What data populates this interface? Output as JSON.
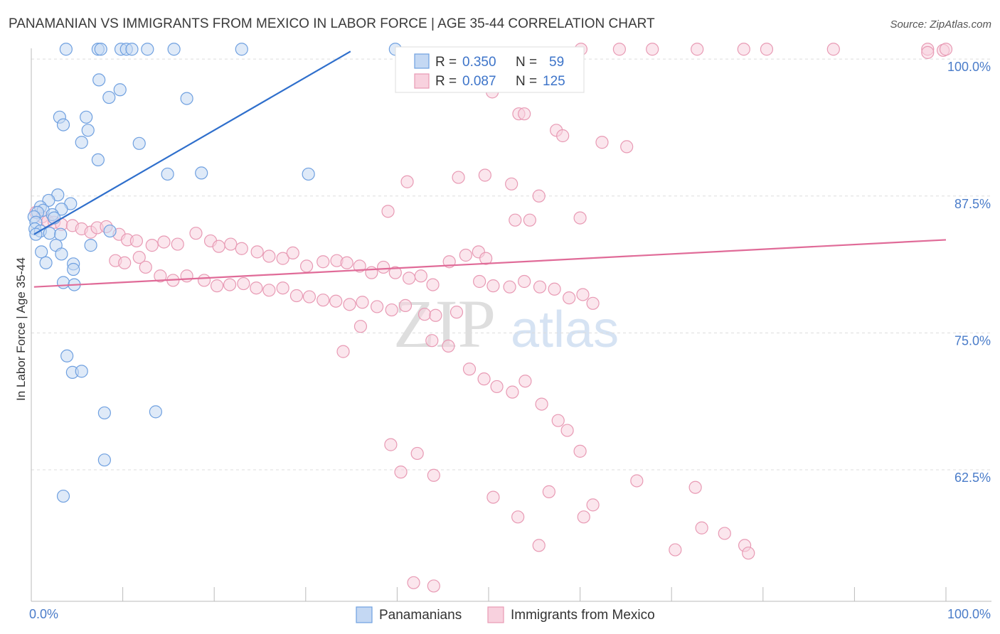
{
  "title": "PANAMANIAN VS IMMIGRANTS FROM MEXICO IN LABOR FORCE | AGE 35-44 CORRELATION CHART",
  "source": "Source: ZipAtlas.com",
  "watermark": {
    "zip": "ZIP",
    "atlas": "atlas"
  },
  "colors": {
    "blue": "#6fa0e0",
    "blue_fill": "#c4d8f3",
    "blue_line": "#2f6fcc",
    "pink": "#e89ab4",
    "pink_fill": "#f8d1de",
    "pink_line": "#e06b98",
    "tick_text": "#4a7cc9",
    "grid": "#dddddd"
  },
  "stats": [
    {
      "r_label": "R =",
      "r_value": "0.350",
      "n_label": "N =",
      "n_value": "59"
    },
    {
      "r_label": "R =",
      "r_value": "0.087",
      "n_label": "N =",
      "n_value": "125"
    }
  ],
  "chart_data": {
    "type": "scatter",
    "title": "PANAMANIAN VS IMMIGRANTS FROM MEXICO IN LABOR FORCE | AGE 35-44 CORRELATION CHART",
    "xlabel": "",
    "ylabel": "In Labor Force | Age 35-44",
    "xlim": [
      0,
      100
    ],
    "ylim": [
      50.5,
      101.5
    ],
    "x_tick_labels": [
      {
        "value": 0,
        "label": "0.0%"
      },
      {
        "value": 100,
        "label": "100.0%"
      }
    ],
    "y_ticks": [
      {
        "value": 100,
        "label": "100.0%"
      },
      {
        "value": 87.5,
        "label": "87.5%"
      },
      {
        "value": 75,
        "label": "75.0%"
      },
      {
        "value": 62.5,
        "label": "62.5%"
      }
    ],
    "grid": true,
    "legend_position": "bottom-center",
    "series": [
      {
        "name": "Panamanians",
        "color": "blue",
        "trend": {
          "x": [
            0.3,
            34.9
          ],
          "y": [
            84.0,
            100.7
          ]
        },
        "points": [
          [
            3.8,
            100.9
          ],
          [
            7.3,
            100.9
          ],
          [
            7.6,
            100.9
          ],
          [
            9.8,
            100.9
          ],
          [
            10.4,
            100.9
          ],
          [
            11.0,
            100.9
          ],
          [
            12.7,
            100.9
          ],
          [
            15.6,
            100.9
          ],
          [
            23.0,
            100.9
          ],
          [
            39.8,
            100.9
          ],
          [
            7.4,
            98.1
          ],
          [
            9.7,
            97.2
          ],
          [
            8.5,
            96.5
          ],
          [
            17.0,
            96.4
          ],
          [
            3.1,
            94.7
          ],
          [
            6.0,
            94.7
          ],
          [
            3.5,
            94.0
          ],
          [
            6.2,
            93.5
          ],
          [
            5.5,
            92.4
          ],
          [
            11.8,
            92.3
          ],
          [
            7.3,
            90.8
          ],
          [
            14.9,
            89.5
          ],
          [
            18.6,
            89.6
          ],
          [
            30.3,
            89.5
          ],
          [
            2.9,
            87.6
          ],
          [
            1.9,
            87.1
          ],
          [
            4.3,
            86.8
          ],
          [
            1.0,
            86.5
          ],
          [
            1.3,
            86.2
          ],
          [
            3.3,
            86.3
          ],
          [
            0.7,
            86.0
          ],
          [
            2.3,
            85.8
          ],
          [
            0.3,
            85.6
          ],
          [
            0.5,
            85.1
          ],
          [
            2.5,
            85.5
          ],
          [
            0.4,
            84.5
          ],
          [
            1.0,
            84.3
          ],
          [
            2.0,
            84.1
          ],
          [
            3.2,
            84.0
          ],
          [
            0.5,
            84.0
          ],
          [
            8.6,
            84.3
          ],
          [
            2.7,
            83.0
          ],
          [
            6.5,
            83.0
          ],
          [
            1.1,
            82.4
          ],
          [
            3.3,
            82.2
          ],
          [
            1.6,
            81.4
          ],
          [
            4.6,
            81.3
          ],
          [
            4.6,
            80.8
          ],
          [
            3.5,
            79.6
          ],
          [
            4.7,
            79.4
          ],
          [
            3.9,
            72.9
          ],
          [
            4.5,
            71.4
          ],
          [
            5.5,
            71.5
          ],
          [
            8.0,
            67.7
          ],
          [
            13.6,
            67.8
          ],
          [
            8.0,
            63.4
          ],
          [
            3.5,
            60.1
          ]
        ]
      },
      {
        "name": "Immigrants from Mexico",
        "color": "pink",
        "trend": {
          "x": [
            0.3,
            100
          ],
          "y": [
            79.2,
            83.5
          ]
        },
        "points": [
          [
            60.1,
            100.9
          ],
          [
            64.3,
            100.9
          ],
          [
            67.9,
            100.9
          ],
          [
            72.8,
            100.9
          ],
          [
            77.9,
            100.9
          ],
          [
            80.4,
            100.9
          ],
          [
            87.7,
            100.9
          ],
          [
            98.0,
            100.9
          ],
          [
            98.0,
            100.6
          ],
          [
            99.7,
            100.8
          ],
          [
            100,
            100.9
          ],
          [
            56.6,
            98.5
          ],
          [
            50.4,
            97.0
          ],
          [
            53.3,
            95.0
          ],
          [
            53.9,
            95.0
          ],
          [
            57.4,
            93.5
          ],
          [
            58.1,
            93.0
          ],
          [
            62.4,
            92.4
          ],
          [
            65.1,
            92.0
          ],
          [
            41.1,
            88.8
          ],
          [
            46.7,
            89.2
          ],
          [
            49.6,
            89.4
          ],
          [
            52.5,
            88.6
          ],
          [
            55.5,
            87.5
          ],
          [
            39.0,
            86.1
          ],
          [
            52.9,
            85.3
          ],
          [
            54.5,
            85.3
          ],
          [
            60.0,
            85.5
          ],
          [
            0.5,
            86.0
          ],
          [
            1.2,
            85.6
          ],
          [
            1.8,
            85.2
          ],
          [
            2.5,
            85.1
          ],
          [
            3.3,
            84.9
          ],
          [
            4.5,
            84.8
          ],
          [
            5.5,
            84.5
          ],
          [
            6.5,
            84.2
          ],
          [
            7.2,
            84.6
          ],
          [
            8.2,
            84.7
          ],
          [
            9.6,
            84.0
          ],
          [
            10.5,
            83.5
          ],
          [
            11.5,
            83.4
          ],
          [
            13.2,
            83.0
          ],
          [
            14.5,
            83.3
          ],
          [
            16.0,
            83.1
          ],
          [
            18.0,
            84.1
          ],
          [
            19.6,
            83.4
          ],
          [
            20.5,
            82.9
          ],
          [
            21.8,
            83.1
          ],
          [
            23.0,
            82.7
          ],
          [
            24.7,
            82.4
          ],
          [
            26.0,
            82.0
          ],
          [
            27.5,
            81.8
          ],
          [
            28.6,
            82.3
          ],
          [
            30.1,
            81.1
          ],
          [
            31.9,
            81.5
          ],
          [
            33.4,
            81.6
          ],
          [
            34.5,
            81.4
          ],
          [
            35.9,
            81.1
          ],
          [
            37.2,
            80.5
          ],
          [
            38.5,
            81.0
          ],
          [
            39.8,
            80.5
          ],
          [
            41.3,
            80.0
          ],
          [
            42.6,
            80.2
          ],
          [
            43.9,
            79.4
          ],
          [
            45.7,
            81.5
          ],
          [
            47.5,
            82.1
          ],
          [
            48.9,
            82.4
          ],
          [
            49.7,
            81.8
          ],
          [
            9.2,
            81.6
          ],
          [
            10.2,
            81.4
          ],
          [
            11.8,
            81.9
          ],
          [
            12.5,
            81.0
          ],
          [
            14.1,
            80.2
          ],
          [
            15.5,
            79.8
          ],
          [
            17.0,
            80.2
          ],
          [
            18.9,
            79.8
          ],
          [
            20.3,
            79.3
          ],
          [
            21.7,
            79.4
          ],
          [
            23.2,
            79.5
          ],
          [
            24.6,
            79.1
          ],
          [
            26.0,
            78.9
          ],
          [
            27.5,
            79.1
          ],
          [
            29.0,
            78.4
          ],
          [
            30.4,
            78.3
          ],
          [
            31.9,
            78.0
          ],
          [
            33.3,
            77.9
          ],
          [
            34.8,
            77.6
          ],
          [
            36.2,
            77.8
          ],
          [
            37.8,
            77.4
          ],
          [
            39.4,
            77.1
          ],
          [
            40.9,
            77.5
          ],
          [
            43.0,
            76.7
          ],
          [
            44.2,
            76.6
          ],
          [
            46.5,
            76.9
          ],
          [
            36.0,
            75.6
          ],
          [
            34.1,
            73.3
          ],
          [
            49.0,
            79.7
          ],
          [
            50.5,
            79.3
          ],
          [
            52.3,
            79.2
          ],
          [
            53.9,
            79.7
          ],
          [
            55.6,
            79.2
          ],
          [
            57.2,
            79.0
          ],
          [
            58.8,
            78.2
          ],
          [
            60.3,
            78.5
          ],
          [
            61.4,
            77.7
          ],
          [
            43.8,
            74.3
          ],
          [
            45.6,
            73.8
          ],
          [
            47.9,
            71.7
          ],
          [
            49.5,
            70.8
          ],
          [
            50.9,
            70.1
          ],
          [
            52.6,
            69.6
          ],
          [
            54.0,
            70.6
          ],
          [
            55.8,
            68.5
          ],
          [
            57.6,
            67.0
          ],
          [
            58.6,
            66.1
          ],
          [
            60.0,
            64.2
          ],
          [
            39.3,
            64.8
          ],
          [
            40.4,
            62.3
          ],
          [
            42.2,
            64.0
          ],
          [
            44.0,
            62.0
          ],
          [
            50.5,
            60.0
          ],
          [
            56.6,
            60.5
          ],
          [
            61.4,
            59.3
          ],
          [
            66.2,
            61.5
          ],
          [
            72.6,
            60.9
          ],
          [
            73.3,
            57.2
          ],
          [
            75.8,
            56.7
          ],
          [
            78.0,
            55.6
          ],
          [
            70.4,
            55.2
          ],
          [
            78.4,
            54.9
          ],
          [
            41.8,
            52.2
          ],
          [
            44.0,
            51.9
          ],
          [
            53.2,
            58.2
          ],
          [
            55.5,
            55.6
          ],
          [
            60.4,
            58.2
          ]
        ]
      }
    ]
  },
  "legend": [
    {
      "label": "Panamanians",
      "color": "blue"
    },
    {
      "label": "Immigrants from Mexico",
      "color": "pink"
    }
  ]
}
